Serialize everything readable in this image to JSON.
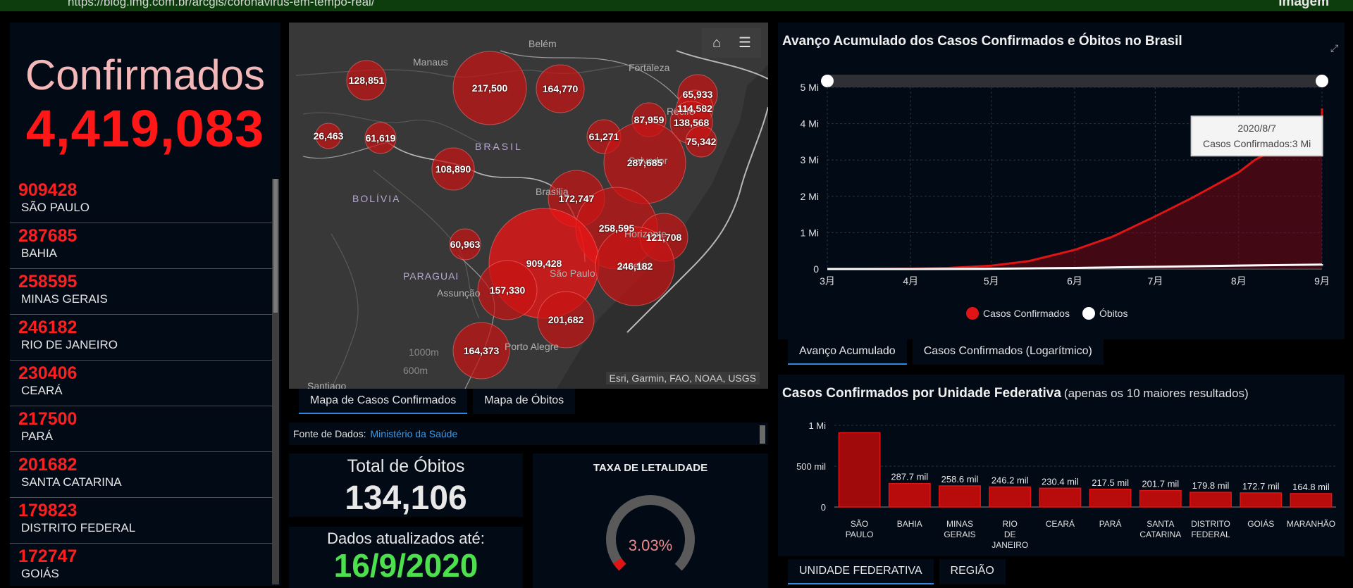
{
  "top": {
    "url": "https://blog.img.com.br/arcgis/coronavirus-em-tempo-real/",
    "brand": "imagem"
  },
  "left": {
    "title": "Confirmados",
    "value": "4,419,083",
    "items": [
      {
        "num": "909428",
        "uf": "SÃO PAULO"
      },
      {
        "num": "287685",
        "uf": "BAHIA"
      },
      {
        "num": "258595",
        "uf": "MINAS GERAIS"
      },
      {
        "num": "246182",
        "uf": "RIO DE JANEIRO"
      },
      {
        "num": "230406",
        "uf": "CEARÁ"
      },
      {
        "num": "217500",
        "uf": "PARÁ"
      },
      {
        "num": "201682",
        "uf": "SANTA CATARINA"
      },
      {
        "num": "179823",
        "uf": "DISTRITO FEDERAL"
      },
      {
        "num": "172747",
        "uf": "GOIÁS"
      }
    ]
  },
  "map": {
    "labels": [
      "Belém",
      "Manaus",
      "Fortaleza",
      "Recife",
      "BRASIL",
      "Salvador",
      "BOLÍVIA",
      "Brasília",
      "PARAGUAI",
      "Assunção",
      "Janeiro",
      "São Paulo",
      "Porto Alegre",
      "Santiago",
      "1000m",
      "600m",
      "Horizonte"
    ],
    "bubbles": [
      "128,851",
      "217,500",
      "164,770",
      "65,933",
      "114,582",
      "87,959",
      "138,568",
      "26,463",
      "61,619",
      "61,271",
      "75,342",
      "108,890",
      "287,685",
      "172,747",
      "258,595",
      "121,708",
      "60,963",
      "909,428",
      "246,182",
      "157,330",
      "201,682",
      "164,373"
    ],
    "attribution": "Esri, Garmin, FAO, NOAA, USGS",
    "home_icon": "home-icon",
    "legend_icon": "list-icon"
  },
  "map_tabs": [
    "Mapa de Casos Confirmados",
    "Mapa de Óbitos"
  ],
  "fonte": {
    "label": "Fonte de Dados:",
    "link": "Ministério da Saúde"
  },
  "obitos": {
    "title": "Total de Óbitos",
    "value": "134,106"
  },
  "dados": {
    "title": "Dados atualizados até:",
    "value": "16/9/2020"
  },
  "taxa": {
    "title": "TAXA DE LETALIDADE",
    "value": "3.03%",
    "fraction": 0.0303
  },
  "line_tabs": [
    "Avanço Acumulado",
    "Casos Confirmados (Logarítmico)"
  ],
  "bar_tabs": [
    "UNIDADE FEDERATIVA",
    "REGIÃO"
  ],
  "colors": {
    "confirmed": "#e01414",
    "deaths": "#ffffff",
    "accent": "#2f88e0",
    "green": "#4ce04c"
  },
  "chart_data": [
    {
      "type": "area",
      "title": "Avanço Acumulado dos Casos Confirmados e Óbitos no Brasil",
      "x_ticks": [
        "3月",
        "4月",
        "5月",
        "6月",
        "7月",
        "8月",
        "9月"
      ],
      "y_ticks": [
        "0",
        "1 Mi",
        "2 Mi",
        "3 Mi",
        "4 Mi",
        "5 Mi"
      ],
      "ylim": [
        0,
        5000000
      ],
      "series": [
        {
          "name": "Casos Confirmados",
          "x": [
            "2020-03-01",
            "2020-03-15",
            "2020-04-01",
            "2020-04-15",
            "2020-05-01",
            "2020-05-15",
            "2020-06-01",
            "2020-06-15",
            "2020-07-01",
            "2020-07-15",
            "2020-08-01",
            "2020-08-07",
            "2020-08-15",
            "2020-09-01",
            "2020-09-16"
          ],
          "values": [
            2,
            200,
            6800,
            28300,
            91600,
            218000,
            526000,
            888000,
            1450000,
            1970000,
            2660000,
            3000000,
            3320000,
            3950000,
            4419083
          ]
        },
        {
          "name": "Óbitos",
          "x": [
            "2020-03-01",
            "2020-04-01",
            "2020-05-01",
            "2020-06-01",
            "2020-07-01",
            "2020-08-01",
            "2020-09-01",
            "2020-09-16"
          ],
          "values": [
            0,
            240,
            6300,
            29900,
            60600,
            93600,
            122000,
            134106
          ]
        }
      ],
      "tooltip": {
        "date": "2020/8/7",
        "text": "Casos Confirmados:3 Mi"
      },
      "legend_position": "bottom"
    },
    {
      "type": "bar",
      "title": "Casos Confirmados por Unidade Federativa",
      "subtitle": "(apenas os 10 maiores resultados)",
      "categories": [
        "SÃO PAULO",
        "BAHIA",
        "MINAS GERAIS",
        "RIO DE JANEIRO",
        "CEARÁ",
        "PARÁ",
        "SANTA CATARINA",
        "DISTRITO FEDERAL",
        "GOIÁS",
        "MARANHÃO"
      ],
      "values": [
        909428,
        287685,
        258595,
        246182,
        230406,
        217500,
        201682,
        179823,
        172747,
        164800
      ],
      "data_labels": [
        "",
        "287.7 mil",
        "258.6 mil",
        "246.2 mil",
        "230.4 mil",
        "217.5 mil",
        "201.7 mil",
        "179.8 mil",
        "172.7 mil",
        "164.8 mil"
      ],
      "y_ticks": [
        "0",
        "500 mil",
        "1 Mi"
      ],
      "ylim": [
        0,
        1000000
      ]
    }
  ]
}
